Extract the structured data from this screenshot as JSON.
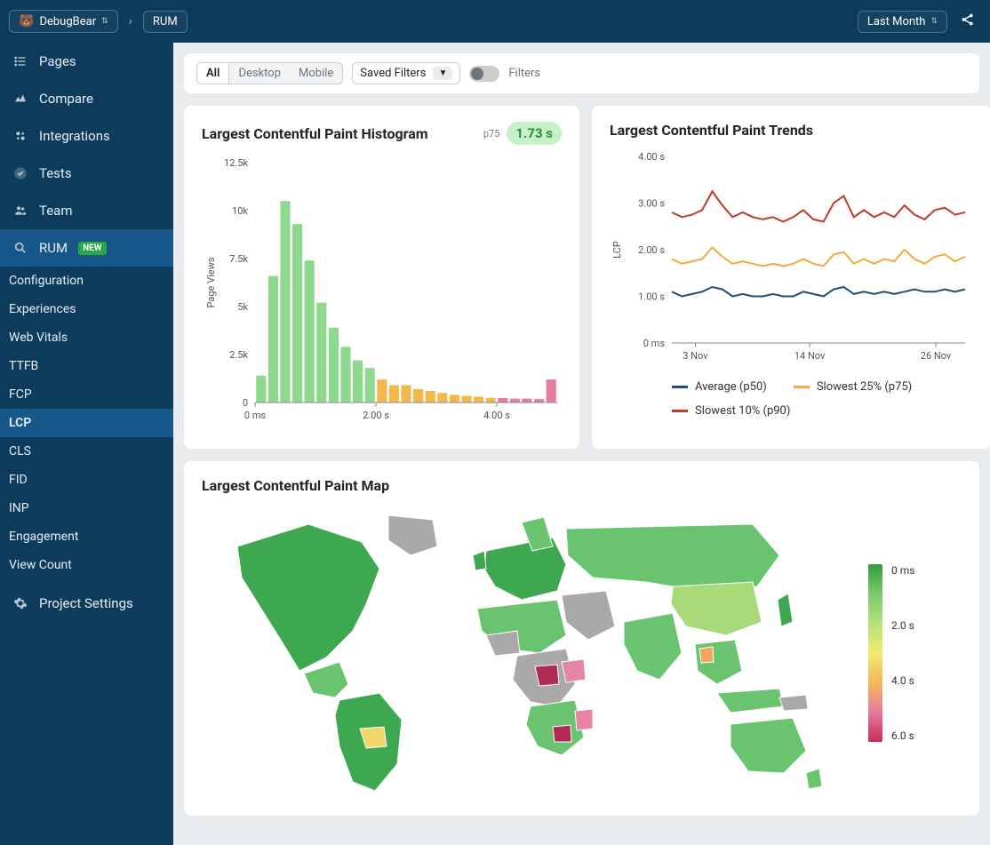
{
  "header": {
    "breadcrumb_project": "DebugBear",
    "breadcrumb_page": "RUM",
    "date_range": "Last Month"
  },
  "sidebar": {
    "items": [
      {
        "label": "Pages",
        "icon": "list"
      },
      {
        "label": "Compare",
        "icon": "compare"
      },
      {
        "label": "Integrations",
        "icon": "gear"
      },
      {
        "label": "Tests",
        "icon": "check"
      },
      {
        "label": "Team",
        "icon": "team"
      },
      {
        "label": "RUM",
        "icon": "search",
        "badge": "NEW",
        "active": true
      }
    ],
    "subitems": [
      {
        "label": "Configuration"
      },
      {
        "label": "Experiences"
      },
      {
        "label": "Web Vitals"
      },
      {
        "label": "TTFB"
      },
      {
        "label": "FCP"
      },
      {
        "label": "LCP",
        "active": true
      },
      {
        "label": "CLS"
      },
      {
        "label": "FID"
      },
      {
        "label": "INP"
      },
      {
        "label": "Engagement"
      },
      {
        "label": "View Count"
      }
    ],
    "settings_label": "Project Settings"
  },
  "filters": {
    "segments": [
      "All",
      "Desktop",
      "Mobile"
    ],
    "segment_active": 0,
    "saved_filters_label": "Saved Filters",
    "filters_label": "Filters"
  },
  "histogram": {
    "title": "Largest Contentful Paint Histogram",
    "p75_label": "p75",
    "p75_value": "1.73 s",
    "ylabel": "Page Views",
    "y_ticks": [
      "0",
      "2.5k",
      "5k",
      "7.5k",
      "10k",
      "12.5k"
    ],
    "y_max": 12500,
    "x_ticks": [
      "0 ms",
      "2.00 s",
      "4.00 s"
    ],
    "bars": [
      {
        "v": 1400,
        "c": "#8ed98e"
      },
      {
        "v": 6600,
        "c": "#8ed98e"
      },
      {
        "v": 10500,
        "c": "#8ed98e"
      },
      {
        "v": 9300,
        "c": "#8ed98e"
      },
      {
        "v": 7400,
        "c": "#8ed98e"
      },
      {
        "v": 5200,
        "c": "#8ed98e"
      },
      {
        "v": 3900,
        "c": "#8ed98e"
      },
      {
        "v": 2900,
        "c": "#8ed98e"
      },
      {
        "v": 2200,
        "c": "#8ed98e"
      },
      {
        "v": 1800,
        "c": "#8ed98e"
      },
      {
        "v": 1200,
        "c": "#f4b84a"
      },
      {
        "v": 900,
        "c": "#f4b84a"
      },
      {
        "v": 900,
        "c": "#f4b84a"
      },
      {
        "v": 700,
        "c": "#f4b84a"
      },
      {
        "v": 600,
        "c": "#f4b84a"
      },
      {
        "v": 500,
        "c": "#f4b84a"
      },
      {
        "v": 400,
        "c": "#f4b84a"
      },
      {
        "v": 350,
        "c": "#f4b84a"
      },
      {
        "v": 300,
        "c": "#f4b84a"
      },
      {
        "v": 250,
        "c": "#f4b84a"
      },
      {
        "v": 230,
        "c": "#e67aa0"
      },
      {
        "v": 200,
        "c": "#e67aa0"
      },
      {
        "v": 200,
        "c": "#e67aa0"
      },
      {
        "v": 180,
        "c": "#e67aa0"
      },
      {
        "v": 1200,
        "c": "#e67aa0"
      }
    ]
  },
  "trends": {
    "title": "Largest Contentful Paint Trends",
    "ylabel": "LCP",
    "y_ticks": [
      "0 ms",
      "1.00 s",
      "2.00 s",
      "3.00 s",
      "4.00 s"
    ],
    "x_ticks": [
      "3 Nov",
      "14 Nov",
      "26 Nov"
    ],
    "legend": [
      {
        "label": "Average (p50)",
        "color": "#1e4e79"
      },
      {
        "label": "Slowest 25% (p75)",
        "color": "#f4a93c"
      },
      {
        "label": "Slowest 10% (p90)",
        "color": "#c0392b"
      }
    ],
    "series": {
      "p50": [
        1.1,
        1.0,
        1.05,
        1.1,
        1.2,
        1.15,
        1.0,
        1.05,
        1.0,
        1.0,
        1.05,
        1.0,
        1.0,
        1.1,
        1.05,
        1.0,
        1.15,
        1.2,
        1.05,
        1.1,
        1.05,
        1.1,
        1.05,
        1.1,
        1.15,
        1.1,
        1.1,
        1.15,
        1.1,
        1.15
      ],
      "p75": [
        1.8,
        1.7,
        1.75,
        1.8,
        2.05,
        1.85,
        1.7,
        1.75,
        1.7,
        1.65,
        1.7,
        1.65,
        1.7,
        1.8,
        1.7,
        1.65,
        1.9,
        1.95,
        1.7,
        1.8,
        1.7,
        1.8,
        1.75,
        2.0,
        1.8,
        1.7,
        1.85,
        1.9,
        1.75,
        1.85
      ],
      "p90": [
        2.8,
        2.7,
        2.75,
        2.85,
        3.25,
        2.95,
        2.7,
        2.8,
        2.7,
        2.65,
        2.7,
        2.6,
        2.7,
        2.85,
        2.65,
        2.6,
        3.0,
        3.15,
        2.7,
        2.85,
        2.7,
        2.8,
        2.7,
        2.95,
        2.75,
        2.65,
        2.85,
        2.9,
        2.75,
        2.8
      ]
    }
  },
  "map": {
    "title": "Largest Contentful Paint Map",
    "legend_ticks": [
      "0 ms",
      "2.0 s",
      "4.0 s",
      "6.0 s"
    ],
    "colors": {
      "fast": "#3ea850",
      "good": "#6ac36e",
      "ok": "#a8da7a",
      "slow": "#f1d76a",
      "slower": "#f0a85e",
      "bad": "#e585a3",
      "worst": "#b02a52",
      "nodata": "#a9a9a9"
    }
  }
}
